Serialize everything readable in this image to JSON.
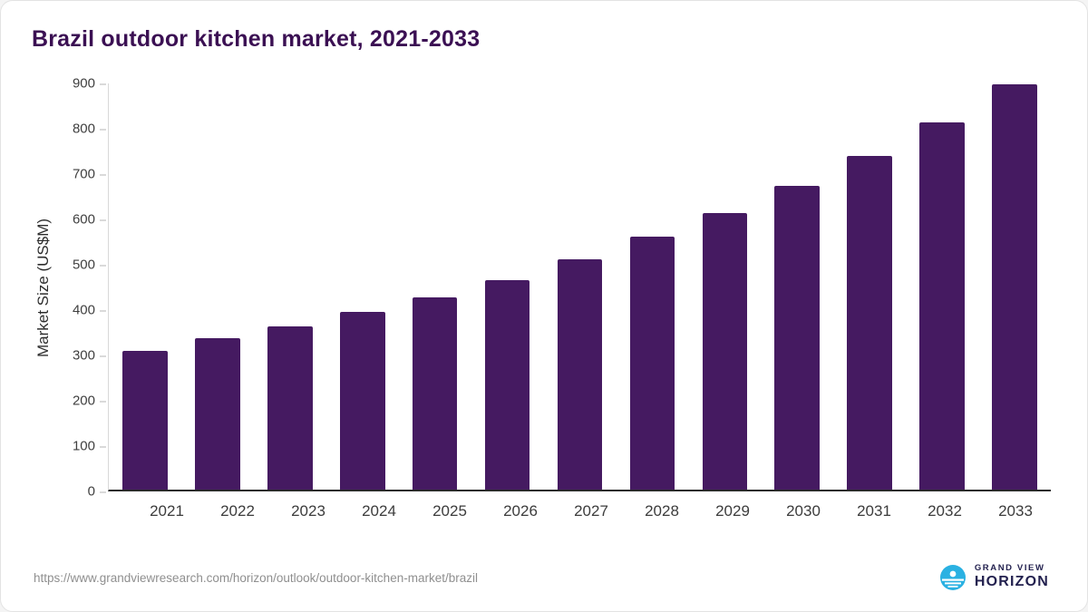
{
  "page": {
    "title": "Brazil outdoor kitchen market, 2021-2033",
    "source_url": "https://www.grandviewresearch.com/horizon/outlook/outdoor-kitchen-market/brazil"
  },
  "branding": {
    "name_top": "GRAND VIEW",
    "name_bottom": "HORIZON",
    "logo_color": "#2ab1e2",
    "text_color": "#23214f"
  },
  "chart_data": {
    "type": "bar",
    "title": "Brazil outdoor kitchen market, 2021-2033",
    "xlabel": "",
    "ylabel": "Market Size (US$M)",
    "categories": [
      "2021",
      "2022",
      "2023",
      "2024",
      "2025",
      "2026",
      "2027",
      "2028",
      "2029",
      "2030",
      "2031",
      "2032",
      "2033"
    ],
    "values": [
      308,
      335,
      362,
      393,
      425,
      465,
      510,
      560,
      613,
      673,
      740,
      814,
      898
    ],
    "ylim": [
      0,
      900
    ],
    "ytick_step": 100,
    "bar_color": "#451a61",
    "grid": false,
    "legend_position": "none"
  }
}
